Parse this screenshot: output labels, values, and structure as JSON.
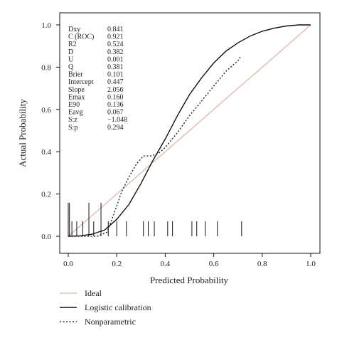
{
  "chart_data": {
    "type": "line",
    "xlabel": "Predicted Probability",
    "ylabel": "Actual Probability",
    "xlim": [
      0.0,
      1.0
    ],
    "ylim": [
      0.0,
      1.0
    ],
    "x_ticks": [
      "0.0",
      "0.2",
      "0.4",
      "0.6",
      "0.8",
      "1.0"
    ],
    "y_ticks": [
      "0.0",
      "0.2",
      "0.4",
      "0.6",
      "0.8",
      "1.0"
    ],
    "grid": false,
    "legend_placement": "bottom-left",
    "stats": [
      {
        "name": "Dxy",
        "value": "0.841"
      },
      {
        "name": "C (ROC)",
        "value": "0.921"
      },
      {
        "name": "R2",
        "value": "0.524"
      },
      {
        "name": "D",
        "value": "0.382"
      },
      {
        "name": "U",
        "value": "0.001"
      },
      {
        "name": "Q",
        "value": "0.381"
      },
      {
        "name": "Brier",
        "value": "0.101"
      },
      {
        "name": "Intercept",
        "value": "0.447"
      },
      {
        "name": "Slope",
        "value": "2.056"
      },
      {
        "name": "Emax",
        "value": "0.160"
      },
      {
        "name": "E90",
        "value": "0.136"
      },
      {
        "name": "Eavg",
        "value": "0.067"
      },
      {
        "name": "S:z",
        "value": "−1.048"
      },
      {
        "name": "S:p",
        "value": "0.294"
      }
    ],
    "series": [
      {
        "name": "Ideal",
        "color": "#e3c3b8",
        "style": "solid",
        "points": [
          [
            0.0,
            0.0
          ],
          [
            1.0,
            1.0
          ]
        ]
      },
      {
        "name": "Logistic calibration",
        "color": "#111111",
        "style": "solid",
        "points": [
          [
            0.0,
            0.0
          ],
          [
            0.05,
            0.002
          ],
          [
            0.1,
            0.01
          ],
          [
            0.15,
            0.03
          ],
          [
            0.2,
            0.08
          ],
          [
            0.25,
            0.15
          ],
          [
            0.3,
            0.25
          ],
          [
            0.35,
            0.36
          ],
          [
            0.4,
            0.46
          ],
          [
            0.45,
            0.57
          ],
          [
            0.5,
            0.67
          ],
          [
            0.55,
            0.75
          ],
          [
            0.6,
            0.82
          ],
          [
            0.65,
            0.875
          ],
          [
            0.7,
            0.915
          ],
          [
            0.75,
            0.947
          ],
          [
            0.8,
            0.97
          ],
          [
            0.85,
            0.985
          ],
          [
            0.9,
            0.995
          ],
          [
            0.95,
            1.0
          ],
          [
            1.0,
            1.0
          ]
        ]
      },
      {
        "name": "Nonparametric",
        "color": "#111111",
        "style": "dotted",
        "points": [
          [
            0.0,
            0.0
          ],
          [
            0.12,
            0.0
          ],
          [
            0.16,
            0.02
          ],
          [
            0.19,
            0.11
          ],
          [
            0.22,
            0.21
          ],
          [
            0.25,
            0.28
          ],
          [
            0.28,
            0.34
          ],
          [
            0.31,
            0.38
          ],
          [
            0.34,
            0.38
          ],
          [
            0.37,
            0.39
          ],
          [
            0.4,
            0.42
          ],
          [
            0.45,
            0.49
          ],
          [
            0.5,
            0.57
          ],
          [
            0.55,
            0.64
          ],
          [
            0.6,
            0.71
          ],
          [
            0.65,
            0.78
          ],
          [
            0.7,
            0.83
          ],
          [
            0.71,
            0.85
          ]
        ]
      }
    ],
    "rug": {
      "tall": [
        0.0,
        0.0,
        0.005,
        0.085,
        0.135
      ],
      "short": [
        0.015,
        0.035,
        0.06,
        0.105,
        0.165,
        0.2,
        0.24,
        0.31,
        0.33,
        0.355,
        0.41,
        0.43,
        0.51,
        0.53,
        0.565,
        0.615,
        0.715
      ]
    }
  },
  "legend": [
    {
      "label": "Ideal",
      "color": "#e3c3b8",
      "style": "solid"
    },
    {
      "label": "Logistic calibration",
      "color": "#111111",
      "style": "solid"
    },
    {
      "label": "Nonparametric",
      "color": "#111111",
      "style": "dotted"
    }
  ]
}
